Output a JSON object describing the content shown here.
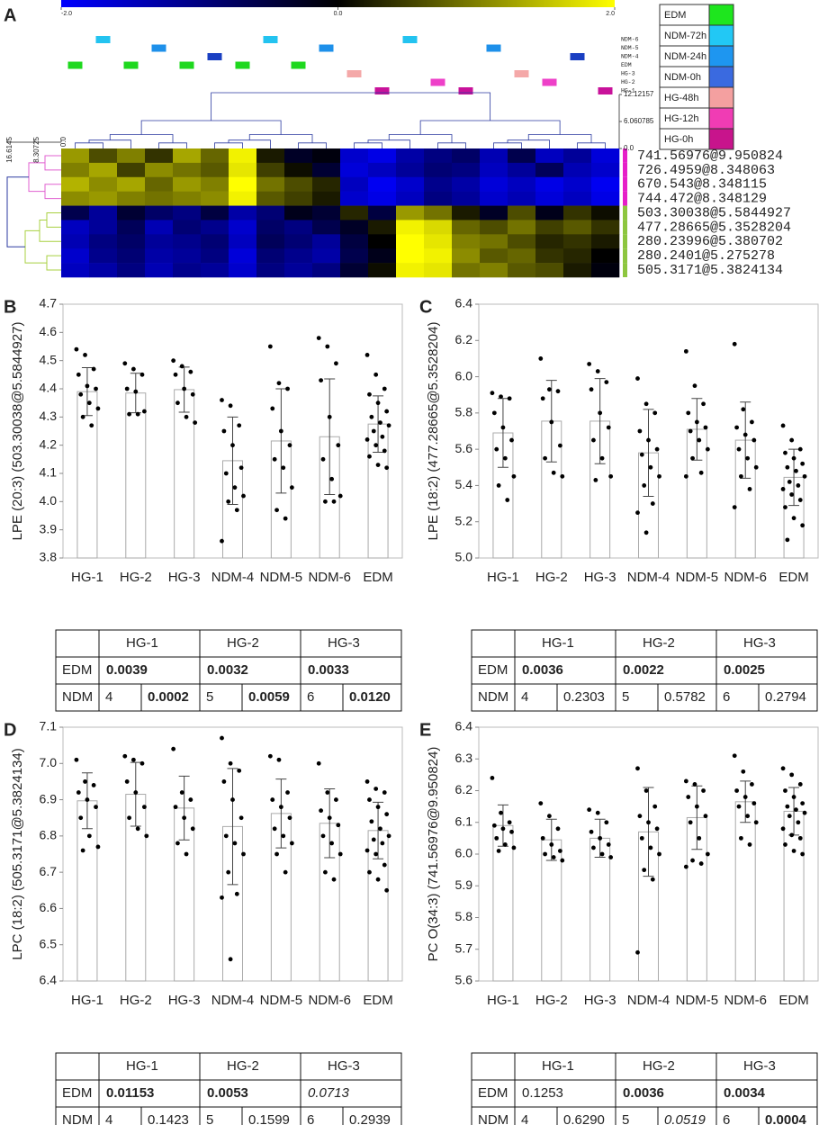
{
  "chart_data": [
    {
      "type": "heatmap",
      "panel": "A",
      "row_labels": [
        "741.56976@9.950824",
        "726.4959@8.348063",
        "670.543@8.348115",
        "744.472@8.348129",
        "503.30038@5.5844927",
        "477.28665@5.3528204",
        "280.23996@5.380702",
        "280.2401@5.275278",
        "505.3171@5.3824134"
      ],
      "values": [
        [
          1.2,
          0.6,
          1.0,
          0.4,
          1.3,
          0.8,
          1.9,
          0.2,
          -0.3,
          -0.1,
          -1.6,
          -1.8,
          -1.3,
          -1.0,
          -0.8,
          -1.4,
          -0.6,
          -1.5,
          -1.2,
          -1.7
        ],
        [
          1.0,
          1.3,
          0.5,
          1.1,
          0.9,
          0.7,
          1.8,
          0.5,
          0.1,
          -0.4,
          -1.7,
          -1.5,
          -1.2,
          -0.9,
          -1.0,
          -1.5,
          -1.2,
          -0.7,
          -1.4,
          -1.6
        ],
        [
          1.4,
          1.1,
          1.3,
          0.8,
          1.2,
          1.0,
          2.0,
          0.9,
          0.6,
          0.3,
          -1.5,
          -1.9,
          -1.6,
          -1.1,
          -1.3,
          -1.7,
          -1.5,
          -1.8,
          -1.6,
          -1.9
        ],
        [
          1.1,
          1.2,
          1.0,
          0.9,
          1.0,
          1.1,
          1.9,
          0.7,
          0.5,
          0.2,
          -1.6,
          -1.8,
          -1.5,
          -1.0,
          -1.2,
          -1.6,
          -1.4,
          -1.7,
          -1.5,
          -1.8
        ],
        [
          -0.6,
          -1.2,
          -0.4,
          -0.8,
          -1.0,
          -0.5,
          -1.3,
          -0.9,
          -0.2,
          -0.4,
          0.3,
          -0.5,
          1.2,
          0.9,
          0.2,
          -0.3,
          0.6,
          -0.2,
          0.4,
          0.1
        ],
        [
          -1.5,
          -1.2,
          -0.7,
          -1.4,
          -0.9,
          -1.1,
          -1.6,
          -0.8,
          -1.0,
          -0.6,
          -0.3,
          0.2,
          1.9,
          1.7,
          0.8,
          0.6,
          0.9,
          0.5,
          0.7,
          0.4
        ],
        [
          -1.4,
          -1.0,
          -0.8,
          -1.2,
          -1.1,
          -0.9,
          -1.5,
          -0.7,
          -0.9,
          -1.2,
          -0.5,
          0.0,
          2.0,
          1.8,
          1.0,
          0.9,
          0.6,
          0.3,
          0.4,
          0.2
        ],
        [
          -1.6,
          -1.1,
          -0.9,
          -1.3,
          -1.2,
          -1.0,
          -1.7,
          -0.9,
          -1.1,
          -1.3,
          -0.6,
          -0.2,
          2.0,
          1.9,
          1.1,
          0.7,
          0.8,
          0.4,
          0.3,
          0.0
        ],
        [
          -1.5,
          -1.3,
          -1.0,
          -1.4,
          -1.1,
          -1.2,
          -1.6,
          -1.0,
          -1.2,
          -1.0,
          -0.4,
          0.1,
          1.9,
          1.8,
          0.9,
          1.0,
          0.7,
          0.6,
          0.2,
          -0.1
        ]
      ],
      "clim": [
        -2,
        2
      ],
      "cticks": [
        {
          "value": -2,
          "label": "-2.0"
        },
        {
          "value": 0,
          "label": "0.0"
        },
        {
          "value": 2,
          "label": "2.0"
        }
      ],
      "tracks": [
        "NDM-6",
        "NDM-5",
        "NDM-4",
        "EDM",
        "HG-3",
        "HG-2",
        "HG-1"
      ],
      "track_colors": [
        "#23c3f0",
        "#1e90ea",
        "#1a3fc2",
        "#1ed81e",
        "#f4a8a8",
        "#ee40c8",
        "#c8129a"
      ],
      "column_groups": [
        3,
        0,
        3,
        1,
        3,
        2,
        3,
        0,
        3,
        1,
        4,
        6,
        0,
        5,
        6,
        1,
        4,
        5,
        2,
        6
      ],
      "legend": {
        "labels": [
          "EDM",
          "NDM-72h",
          "NDM-24h",
          "NDM-0h",
          "HG-48h",
          "HG-12h",
          "HG-0h"
        ],
        "colors": [
          "#1ee61e",
          "#22c8f5",
          "#1e96f0",
          "#3a6ae0",
          "#f4a0a0",
          "#f03cb4",
          "#c8148c"
        ]
      },
      "row_dendrogram_ticks": [
        16.6145,
        8.30725,
        {
          "value": 0,
          "label": "0.0"
        }
      ],
      "col_dendrogram_ticks": [
        12.12157,
        6.060785,
        {
          "value": 0,
          "label": "0.0"
        }
      ]
    },
    {
      "type": "bar",
      "panel": "B",
      "ylabel": "LPE (20:3) (503.30038@5.5844927)",
      "categories": [
        "HG-1",
        "HG-2",
        "HG-3",
        "NDM-4",
        "NDM-5",
        "NDM-6",
        "EDM"
      ],
      "category_colors": [
        "#d4148c",
        "#e8559b",
        "#f0958c",
        "#1b2a6b",
        "#4a7fc0",
        "#1fa8e0",
        "#2db34a"
      ],
      "values": [
        4.39,
        4.385,
        4.397,
        4.145,
        4.215,
        4.23,
        4.275
      ],
      "errors": [
        0.085,
        0.07,
        0.08,
        0.155,
        0.185,
        0.205,
        0.1
      ],
      "points": [
        [
          4.54,
          4.52,
          4.47,
          4.45,
          4.41,
          4.4,
          4.38,
          4.35,
          4.33,
          4.3,
          4.27
        ],
        [
          4.49,
          4.47,
          4.45,
          4.4,
          4.39,
          4.32,
          4.31,
          4.31
        ],
        [
          4.5,
          4.48,
          4.46,
          4.45,
          4.4,
          4.38,
          4.35,
          4.3,
          4.28
        ],
        [
          4.36,
          4.34,
          4.27,
          4.25,
          4.2,
          4.12,
          4.1,
          4.05,
          4.02,
          4.0,
          3.97,
          3.86
        ],
        [
          4.55,
          4.42,
          4.4,
          4.33,
          4.25,
          4.2,
          4.15,
          4.12,
          4.05,
          3.97,
          3.94
        ],
        [
          4.58,
          4.55,
          4.49,
          4.43,
          4.3,
          4.2,
          4.15,
          4.08,
          4.02,
          4.0,
          4.0
        ],
        [
          4.52,
          4.45,
          4.4,
          4.38,
          4.35,
          4.32,
          4.3,
          4.28,
          4.27,
          4.25,
          4.23,
          4.22,
          4.2,
          4.18,
          4.16,
          4.13,
          4.12
        ]
      ],
      "ylim": [
        3.8,
        4.7
      ],
      "yticks": [
        3.8,
        3.9,
        {
          "value": 4,
          "label": "4.0"
        },
        4.1,
        4.2,
        4.3,
        4.4,
        4.5,
        4.6,
        4.7
      ],
      "table": {
        "header": [
          "HG-1",
          "HG-2",
          "HG-3"
        ],
        "header_colors": [
          "#d4148c",
          "#e8559b",
          "#f0958c"
        ],
        "edm": {
          "label": "EDM",
          "color": "#2db34a",
          "cells": [
            "0.0039",
            "0.0032",
            "0.0033"
          ],
          "styles": [
            "bold",
            "bold",
            "bold"
          ]
        },
        "ndm": {
          "label": "NDM",
          "color": "#1b2a6b",
          "groups": [
            "4",
            "5",
            "6"
          ],
          "group_colors": [
            "#1b2a6b",
            "#4a7fc0",
            "#1fa8e0"
          ],
          "cells": [
            "0.0002",
            "0.0059",
            "0.0120"
          ],
          "styles": [
            "bold",
            "bold",
            "bold"
          ]
        }
      }
    },
    {
      "type": "bar",
      "panel": "C",
      "ylabel": "LPE (18:2) (477.28665@5.3528204)",
      "categories": [
        "HG-1",
        "HG-2",
        "HG-3",
        "NDM-4",
        "NDM-5",
        "NDM-6",
        "EDM"
      ],
      "category_colors": [
        "#d4148c",
        "#e8559b",
        "#f0958c",
        "#1b2a6b",
        "#4a7fc0",
        "#1fa8e0",
        "#2db34a"
      ],
      "values": [
        5.69,
        5.755,
        5.755,
        5.58,
        5.71,
        5.65,
        5.445
      ],
      "errors": [
        0.19,
        0.225,
        0.235,
        0.24,
        0.17,
        0.21,
        0.155
      ],
      "points": [
        [
          5.91,
          5.89,
          5.88,
          5.8,
          5.72,
          5.65,
          5.6,
          5.55,
          5.45,
          5.4,
          5.32
        ],
        [
          6.1,
          5.93,
          5.92,
          5.88,
          5.75,
          5.62,
          5.55,
          5.47,
          5.45
        ],
        [
          6.07,
          6.03,
          5.97,
          5.93,
          5.8,
          5.72,
          5.65,
          5.55,
          5.45,
          5.43
        ],
        [
          5.99,
          5.85,
          5.8,
          5.7,
          5.65,
          5.6,
          5.57,
          5.5,
          5.45,
          5.4,
          5.3,
          5.25,
          5.14
        ],
        [
          6.14,
          5.95,
          5.85,
          5.8,
          5.75,
          5.72,
          5.7,
          5.65,
          5.6,
          5.55,
          5.47,
          5.45
        ],
        [
          6.18,
          5.82,
          5.75,
          5.72,
          5.68,
          5.65,
          5.6,
          5.55,
          5.5,
          5.45,
          5.38,
          5.28
        ],
        [
          5.73,
          5.65,
          5.6,
          5.58,
          5.55,
          5.52,
          5.5,
          5.48,
          5.45,
          5.42,
          5.4,
          5.38,
          5.35,
          5.32,
          5.28,
          5.22,
          5.18,
          5.1
        ]
      ],
      "ylim": [
        5.0,
        6.4
      ],
      "yticks": [
        {
          "value": 5,
          "label": "5.0"
        },
        5.2,
        5.4,
        5.6,
        5.8,
        {
          "value": 6,
          "label": "6.0"
        },
        6.2,
        6.4
      ],
      "table": {
        "header": [
          "HG-1",
          "HG-2",
          "HG-3"
        ],
        "header_colors": [
          "#d4148c",
          "#e8559b",
          "#f0958c"
        ],
        "edm": {
          "label": "EDM",
          "color": "#2db34a",
          "cells": [
            "0.0036",
            "0.0022",
            "0.0025"
          ],
          "styles": [
            "bold",
            "bold",
            "bold"
          ]
        },
        "ndm": {
          "label": "NDM",
          "color": "#1b2a6b",
          "groups": [
            "4",
            "5",
            "6"
          ],
          "group_colors": [
            "#1b2a6b",
            "#4a7fc0",
            "#1fa8e0"
          ],
          "cells": [
            "0.2303",
            "0.5782",
            "0.2794"
          ],
          "styles": [
            "normal",
            "normal",
            "normal"
          ]
        }
      }
    },
    {
      "type": "bar",
      "panel": "D",
      "ylabel": "LPC (18:2) (505.3171@5.3824134)",
      "categories": [
        "HG-1",
        "HG-2",
        "HG-3",
        "NDM-4",
        "NDM-5",
        "NDM-6",
        "EDM"
      ],
      "category_colors": [
        "#d4148c",
        "#e8559b",
        "#f0958c",
        "#1b2a6b",
        "#4a7fc0",
        "#1fa8e0",
        "#2db34a"
      ],
      "values": [
        6.897,
        6.915,
        6.877,
        6.826,
        6.862,
        6.835,
        6.815
      ],
      "errors": [
        0.077,
        0.088,
        0.088,
        0.16,
        0.095,
        0.095,
        0.078
      ],
      "points": [
        [
          7.01,
          6.95,
          6.94,
          6.92,
          6.9,
          6.88,
          6.85,
          6.8,
          6.77,
          6.76
        ],
        [
          7.02,
          7.01,
          7.0,
          6.95,
          6.92,
          6.88,
          6.85,
          6.82,
          6.8
        ],
        [
          7.04,
          6.92,
          6.9,
          6.88,
          6.85,
          6.82,
          6.78,
          6.75
        ],
        [
          7.07,
          7.0,
          6.98,
          6.95,
          6.9,
          6.85,
          6.8,
          6.78,
          6.75,
          6.7,
          6.64,
          6.63,
          6.46
        ],
        [
          7.02,
          7.01,
          6.92,
          6.9,
          6.88,
          6.85,
          6.82,
          6.8,
          6.78,
          6.75,
          6.7
        ],
        [
          7.0,
          6.92,
          6.9,
          6.87,
          6.85,
          6.83,
          6.8,
          6.78,
          6.75,
          6.7,
          6.68
        ],
        [
          6.95,
          6.93,
          6.92,
          6.9,
          6.88,
          6.86,
          6.84,
          6.82,
          6.8,
          6.79,
          6.78,
          6.76,
          6.75,
          6.72,
          6.7,
          6.68,
          6.65
        ]
      ],
      "ylim": [
        6.4,
        7.1
      ],
      "yticks": [
        6.4,
        6.5,
        6.6,
        6.7,
        6.8,
        6.9,
        {
          "value": 7,
          "label": "7.0"
        },
        7.1
      ],
      "table": {
        "header": [
          "HG-1",
          "HG-2",
          "HG-3"
        ],
        "header_colors": [
          "#d4148c",
          "#e8559b",
          "#f0958c"
        ],
        "edm": {
          "label": "EDM",
          "color": "#2db34a",
          "cells": [
            "0.01153",
            "0.0053",
            "0.0713"
          ],
          "styles": [
            "bold",
            "bold",
            "italic"
          ]
        },
        "ndm": {
          "label": "NDM",
          "color": "#3a5a8c",
          "groups": [
            "4",
            "5",
            "6"
          ],
          "group_colors": [
            "#3a5a8c",
            "#4a7fc0",
            "#1fa8e0"
          ],
          "cells": [
            "0.1423",
            "0.1599",
            "0.2939"
          ],
          "styles": [
            "normal",
            "normal",
            "normal"
          ]
        }
      }
    },
    {
      "type": "bar",
      "panel": "E",
      "ylabel": "PC O(34:3) (741.56976@9.950824)",
      "categories": [
        "HG-1",
        "HG-2",
        "HG-3",
        "NDM-4",
        "NDM-5",
        "NDM-6",
        "EDM"
      ],
      "category_colors": [
        "#d4148c",
        "#e8559b",
        "#f0958c",
        "#1b2a6b",
        "#4a7fc0",
        "#1fa8e0",
        "#2db34a"
      ],
      "values": [
        6.09,
        6.045,
        6.05,
        6.07,
        6.115,
        6.165,
        6.135
      ],
      "errors": [
        0.065,
        0.065,
        0.06,
        0.14,
        0.1,
        0.065,
        0.075
      ],
      "points": [
        [
          6.24,
          6.13,
          6.1,
          6.09,
          6.08,
          6.07,
          6.05,
          6.03,
          6.02,
          6.01
        ],
        [
          6.16,
          6.12,
          6.08,
          6.05,
          6.03,
          6.01,
          6.0,
          5.99,
          5.98
        ],
        [
          6.14,
          6.13,
          6.1,
          6.07,
          6.05,
          6.03,
          6.02,
          6.0,
          5.99
        ],
        [
          6.27,
          6.2,
          6.15,
          6.12,
          6.1,
          6.08,
          6.05,
          6.02,
          6.0,
          5.95,
          5.92,
          5.69
        ],
        [
          6.23,
          6.22,
          6.2,
          6.18,
          6.15,
          6.12,
          6.1,
          6.05,
          6.0,
          5.98,
          5.97,
          5.96
        ],
        [
          6.31,
          6.26,
          6.22,
          6.2,
          6.18,
          6.16,
          6.15,
          6.12,
          6.1,
          6.05,
          6.03
        ],
        [
          6.27,
          6.25,
          6.22,
          6.2,
          6.18,
          6.16,
          6.15,
          6.14,
          6.13,
          6.12,
          6.1,
          6.08,
          6.06,
          6.05,
          6.03,
          6.01,
          6.0
        ]
      ],
      "ylim": [
        5.6,
        6.4
      ],
      "yticks": [
        5.6,
        5.7,
        5.8,
        5.9,
        {
          "value": 6,
          "label": "6.0"
        },
        6.1,
        6.2,
        6.3,
        6.4
      ],
      "table": {
        "header": [
          "HG-1",
          "HG-2",
          "HG-3"
        ],
        "header_colors": [
          "#d4148c",
          "#e8559b",
          "#f0958c"
        ],
        "edm": {
          "label": "EDM",
          "color": "#2db34a",
          "cells": [
            "0.1253",
            "0.0036",
            "0.0034"
          ],
          "styles": [
            "normal",
            "bold",
            "bold"
          ]
        },
        "ndm": {
          "label": "NDM",
          "color": "#3a5a8c",
          "groups": [
            "4",
            "5",
            "6"
          ],
          "group_colors": [
            "#3a5a8c",
            "#4a7fc0",
            "#1fa8e0"
          ],
          "cells": [
            "0.6290",
            "0.0519",
            "0.0004"
          ],
          "styles": [
            "normal",
            "italic",
            "bold"
          ]
        }
      }
    }
  ]
}
